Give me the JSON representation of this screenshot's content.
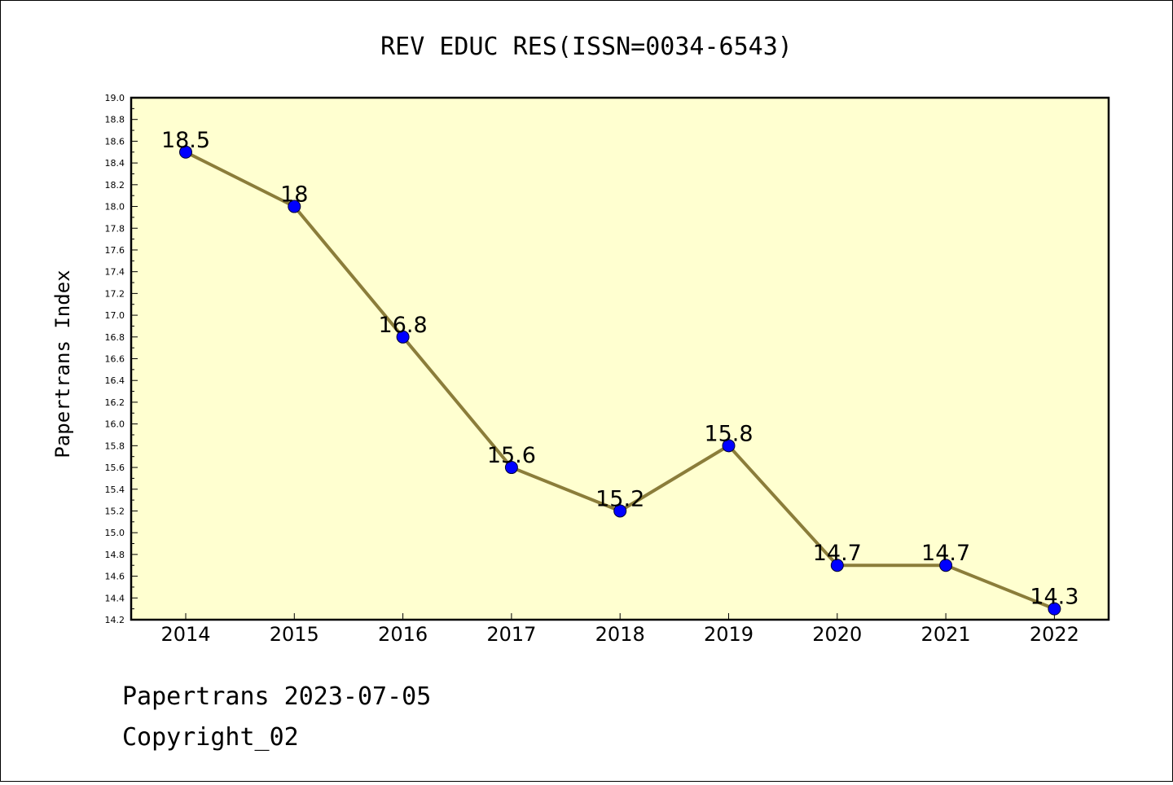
{
  "chart_data": {
    "type": "line",
    "title": "REV EDUC RES(ISSN=0034-6543)",
    "xlabel": "",
    "ylabel": "Papertrans Index",
    "categories": [
      "2014",
      "2015",
      "2016",
      "2017",
      "2018",
      "2019",
      "2020",
      "2021",
      "2022"
    ],
    "series": [
      {
        "values": [
          18.5,
          18.0,
          16.8,
          15.6,
          15.2,
          15.8,
          14.7,
          14.7,
          14.3
        ],
        "labels": [
          "18.5",
          "18",
          "16.8",
          "15.6",
          "15.2",
          "15.8",
          "14.7",
          "14.7",
          "14.3"
        ]
      }
    ],
    "ylim": [
      14.2,
      19.0
    ],
    "yticks": [
      "14.2",
      "14.4",
      "14.6",
      "14.8",
      "15.0",
      "15.2",
      "15.4",
      "15.6",
      "15.8",
      "16.0",
      "16.2",
      "16.4",
      "16.6",
      "16.8",
      "17.0",
      "17.2",
      "17.4",
      "17.6",
      "17.8",
      "18.0",
      "18.2",
      "18.4",
      "18.6",
      "18.8",
      "19.0"
    ],
    "grid": false,
    "legend": "none",
    "colors": {
      "plot_background": "#ffffd0",
      "line": "#8b7d3a",
      "marker": "#0000ff"
    }
  },
  "footer": {
    "line1": "Papertrans 2023-07-05",
    "line2": "Copyright_02"
  }
}
